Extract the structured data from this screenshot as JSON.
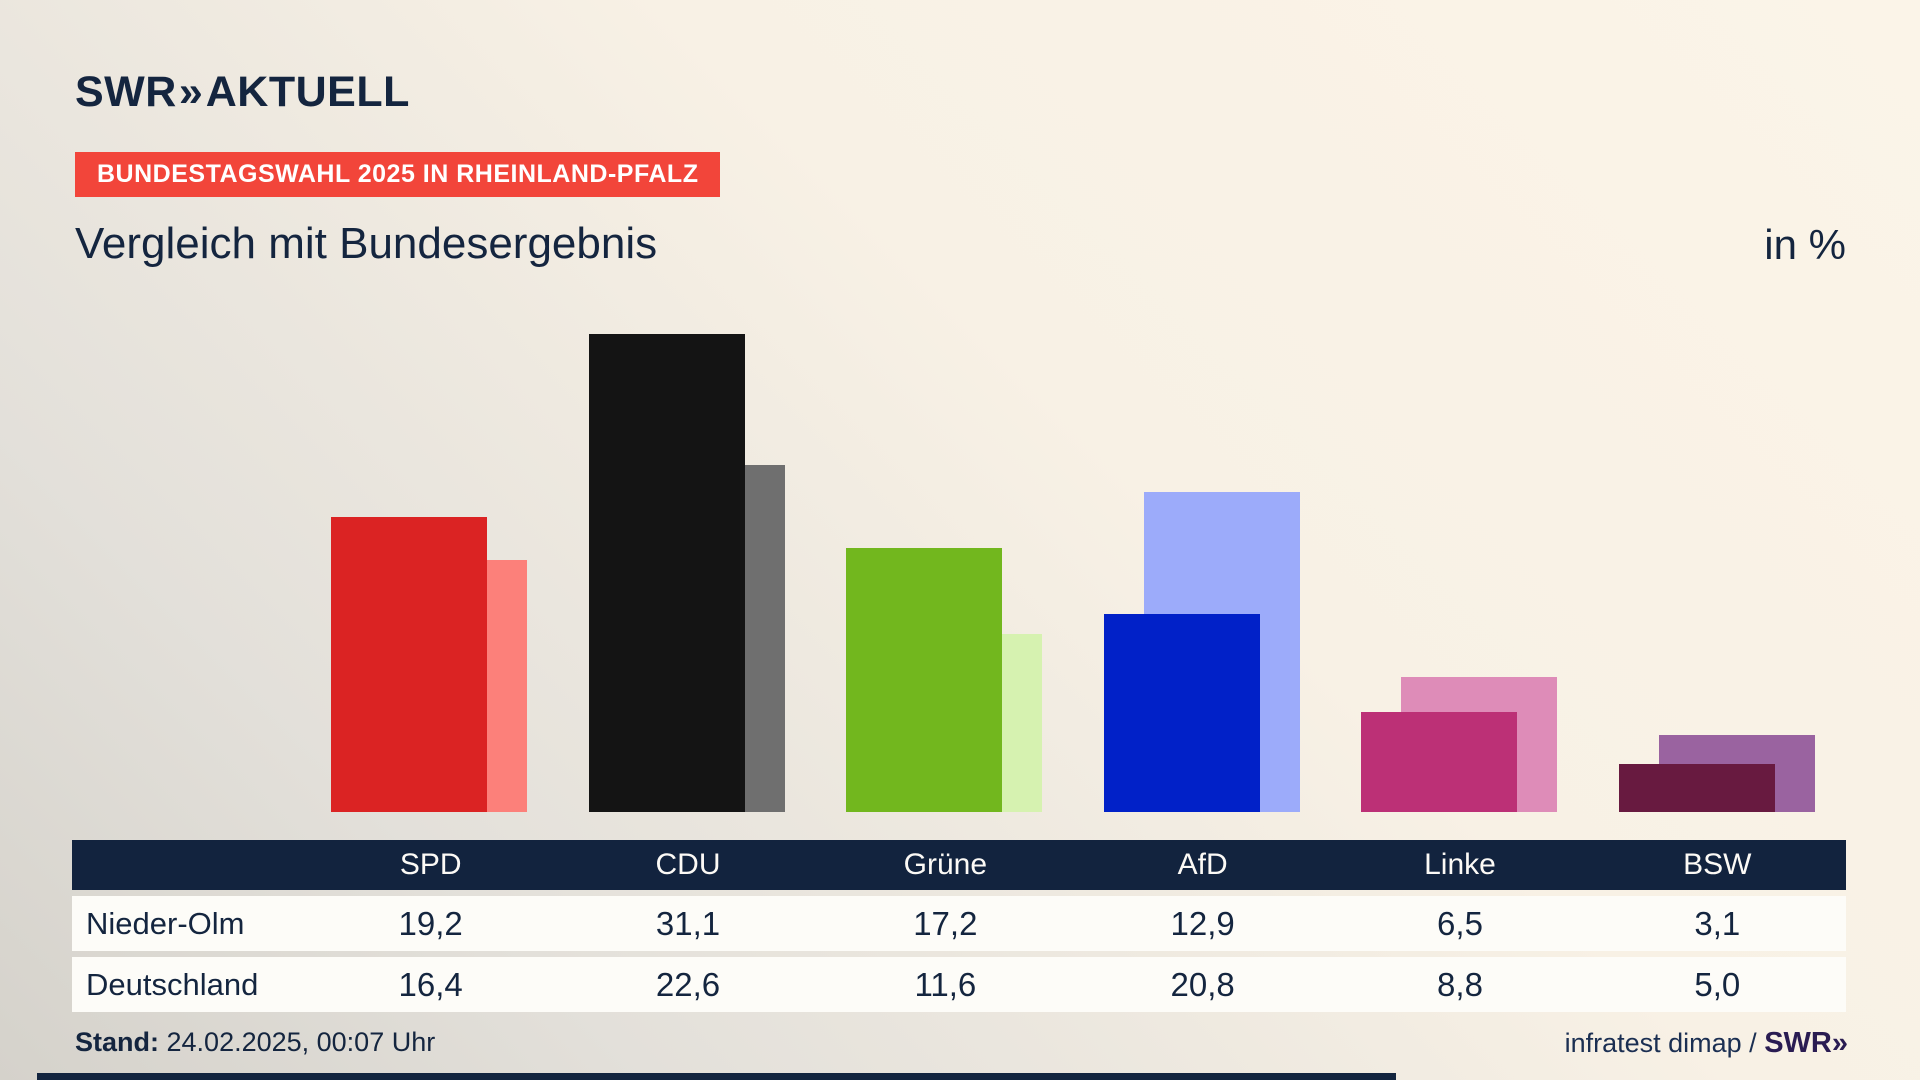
{
  "brand": {
    "name": "SWR",
    "chevron": "»",
    "product": "AKTUELL"
  },
  "badge_label": "BUNDESTAGSWAHL 2025 IN RHEINLAND-PFALZ",
  "title": "Vergleich mit Bundesergebnis",
  "unit_label": "in %",
  "chart_data": {
    "type": "bar",
    "title": "Vergleich mit Bundesergebnis",
    "unit": "in %",
    "categories": [
      "SPD",
      "CDU",
      "Grüne",
      "AfD",
      "Linke",
      "BSW"
    ],
    "series": [
      {
        "name": "Nieder-Olm",
        "values": [
          19.2,
          31.1,
          17.2,
          12.9,
          6.5,
          3.1
        ]
      },
      {
        "name": "Deutschland",
        "values": [
          16.4,
          22.6,
          11.6,
          20.8,
          8.8,
          5.0
        ]
      }
    ],
    "party_colors": {
      "SPD": {
        "front": "#db2323",
        "back": "#fc807a"
      },
      "CDU": {
        "front": "#141414",
        "back": "#6f6f6f"
      },
      "Grüne": {
        "front": "#72b71e",
        "back": "#d6f2b0"
      },
      "AfD": {
        "front": "#0121c8",
        "back": "#9cabfa"
      },
      "Linke": {
        "front": "#bc3076",
        "back": "#de8cb8"
      },
      "BSW": {
        "front": "#681a40",
        "back": "#9a63a0"
      }
    },
    "ylim": [
      0,
      33
    ],
    "grid": false,
    "legend_position": "table-below",
    "value_format": "comma-decimal"
  },
  "table": {
    "header": [
      "",
      "SPD",
      "CDU",
      "Grüne",
      "AfD",
      "Linke",
      "BSW"
    ],
    "row_labels": [
      "Nieder-Olm",
      "Deutschland"
    ],
    "display_values": [
      [
        "19,2",
        "31,1",
        "17,2",
        "12,9",
        "6,5",
        "3,1"
      ],
      [
        "16,4",
        "22,6",
        "11,6",
        "20,8",
        "8,8",
        "5,0"
      ]
    ]
  },
  "footer": {
    "stand_label": "Stand:",
    "stand_value": "24.02.2025, 00:07 Uhr",
    "source_text": "infratest dimap / ",
    "source_brand": "SWR",
    "source_brand_chevron": "»"
  },
  "colors": {
    "navy": "#14253f",
    "badge_red": "#f2453a",
    "table_header_bg": "#12233e",
    "row_bg": "#fdfcf8",
    "swr_footer_purple": "#2a1c52"
  }
}
